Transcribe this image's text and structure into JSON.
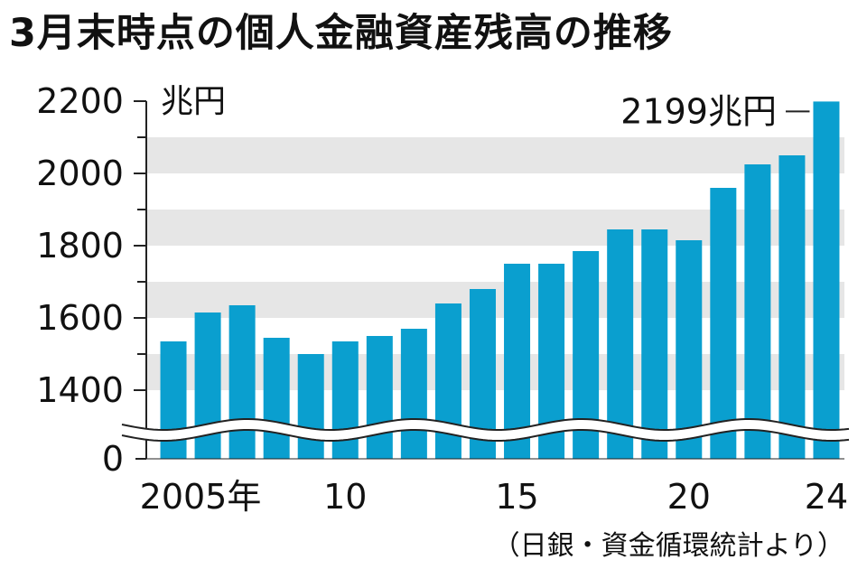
{
  "title": "3月末時点の個人金融資産残高の推移",
  "source": "（日銀・資金循環統計より）",
  "colors": {
    "bar": "#0a9fcf",
    "band": "#e6e6e6",
    "axis": "#222222"
  },
  "chart_data": {
    "type": "bar",
    "title": "3月末時点の個人金融資産残高の推移",
    "ylabel": "兆円",
    "ylim": [
      1200,
      2200
    ],
    "axis_break": true,
    "grid": "alternating horizontal bands",
    "yticks": [
      0,
      1400,
      1600,
      1800,
      2000,
      2200
    ],
    "x": [
      2005,
      2006,
      2007,
      2008,
      2009,
      2010,
      2011,
      2012,
      2013,
      2014,
      2015,
      2016,
      2017,
      2018,
      2019,
      2020,
      2021,
      2022,
      2023,
      2024
    ],
    "xtick_labels": [
      {
        "x": 2005,
        "label": "2005年"
      },
      {
        "x": 2010,
        "label": "10"
      },
      {
        "x": 2015,
        "label": "15"
      },
      {
        "x": 2020,
        "label": "20"
      },
      {
        "x": 2024,
        "label": "24"
      }
    ],
    "values": [
      1535,
      1615,
      1635,
      1545,
      1500,
      1535,
      1550,
      1570,
      1640,
      1680,
      1750,
      1750,
      1785,
      1845,
      1845,
      1815,
      1960,
      2025,
      2050,
      2199
    ],
    "annotation": {
      "x": 2024,
      "text": "2199兆円"
    }
  }
}
